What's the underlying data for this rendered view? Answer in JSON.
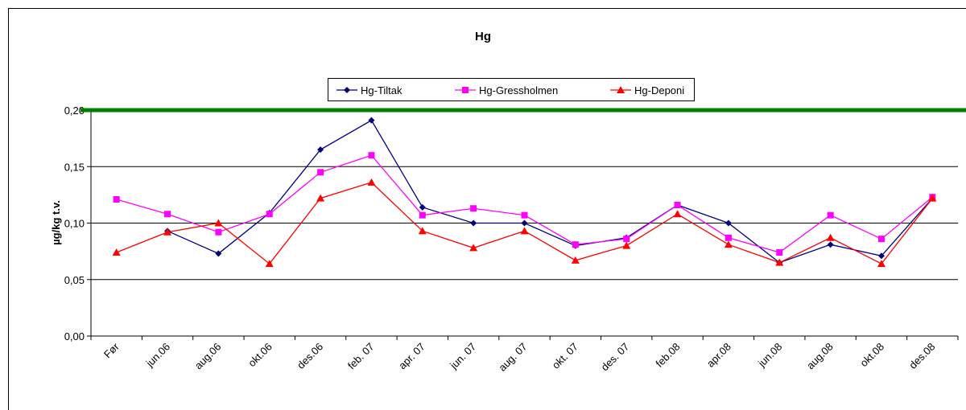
{
  "chart_data": {
    "type": "line",
    "title": "Hg",
    "y_label": "µg/kg t.v.",
    "categories": [
      "Før",
      "jun.06",
      "aug.06",
      "okt.06",
      "des.06",
      "feb. 07",
      "apr. 07",
      "jun. 07",
      "aug. 07",
      "okt. 07",
      "des. 07",
      "feb.08",
      "apr.08",
      "jun.08",
      "aug.08",
      "okt.08",
      "des.08"
    ],
    "series": [
      {
        "name": "Hg-Tiltak",
        "color": "#000080",
        "marker": "diamond",
        "values": [
          null,
          0.093,
          0.073,
          0.109,
          0.165,
          0.191,
          0.114,
          0.1,
          0.1,
          0.08,
          0.087,
          0.116,
          0.1,
          0.065,
          0.081,
          0.071,
          0.122
        ]
      },
      {
        "name": "Hg-Gressholmen",
        "color": "#ff00ff",
        "marker": "square",
        "values": [
          0.121,
          0.108,
          0.092,
          0.108,
          0.145,
          0.16,
          0.107,
          0.113,
          0.107,
          0.081,
          0.086,
          0.116,
          0.087,
          0.074,
          0.107,
          0.086,
          0.123
        ]
      },
      {
        "name": "Hg-Deponi",
        "color": "#ff0000",
        "marker": "triangle",
        "values": [
          0.074,
          0.092,
          0.1,
          0.064,
          0.122,
          0.136,
          0.093,
          0.078,
          0.093,
          0.067,
          0.08,
          0.108,
          0.081,
          0.065,
          0.087,
          0.064,
          0.122
        ]
      }
    ],
    "ylim": [
      0,
      0.2
    ],
    "yticks": [
      {
        "value": 0,
        "label": "0,00"
      },
      {
        "value": 0.05,
        "label": "0,05"
      },
      {
        "value": 0.1,
        "label": "0,10"
      },
      {
        "value": 0.15,
        "label": "0,15"
      },
      {
        "value": 0.2,
        "label": "0,20"
      }
    ],
    "grid": true,
    "legend": "top",
    "reference_line": {
      "value": 0.2,
      "color": "#008000"
    }
  }
}
